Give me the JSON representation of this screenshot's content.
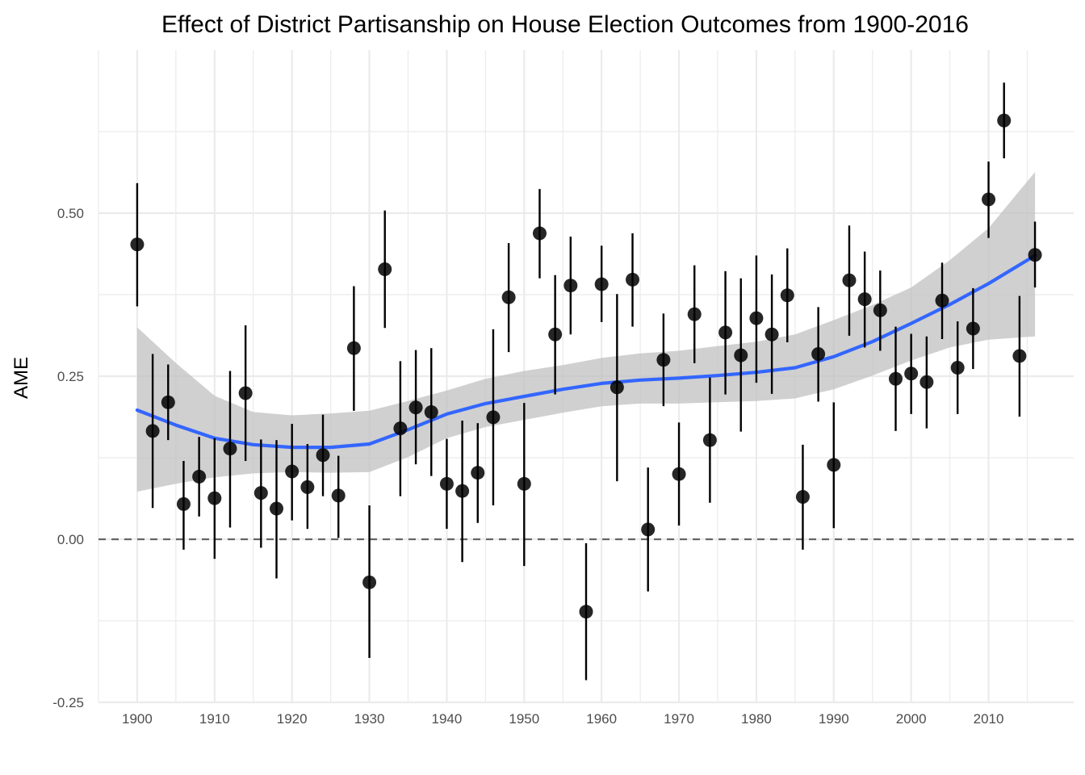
{
  "chart_data": {
    "type": "scatter",
    "title": "Effect of District Partisanship on House Election Outcomes from 1900-2016",
    "xlabel": "",
    "ylabel": "AME",
    "xlim": [
      1895,
      2021
    ],
    "ylim": [
      -0.25,
      0.75
    ],
    "x_ticks": [
      1900,
      1910,
      1920,
      1930,
      1940,
      1950,
      1960,
      1970,
      1980,
      1990,
      2000,
      2010
    ],
    "y_ticks": [
      -0.25,
      0.0,
      0.25,
      0.5
    ],
    "y_tick_labels": [
      "-0.25",
      "0.00",
      "0.25",
      "0.50"
    ],
    "reference_line": 0,
    "grid": true,
    "colors": {
      "points": "#000000",
      "smooth": "#3366ff",
      "ribbon": "#bebebe",
      "reference": "#666666",
      "grid": "#ebebeb"
    },
    "points": [
      {
        "x": 1900,
        "y": 0.452,
        "lo": 0.357,
        "hi": 0.546
      },
      {
        "x": 1902,
        "y": 0.166,
        "lo": 0.048,
        "hi": 0.284
      },
      {
        "x": 1904,
        "y": 0.21,
        "lo": 0.152,
        "hi": 0.268
      },
      {
        "x": 1906,
        "y": 0.054,
        "lo": -0.016,
        "hi": 0.12
      },
      {
        "x": 1908,
        "y": 0.096,
        "lo": 0.035,
        "hi": 0.157
      },
      {
        "x": 1910,
        "y": 0.063,
        "lo": -0.03,
        "hi": 0.155
      },
      {
        "x": 1912,
        "y": 0.139,
        "lo": 0.018,
        "hi": 0.258
      },
      {
        "x": 1914,
        "y": 0.224,
        "lo": 0.12,
        "hi": 0.328
      },
      {
        "x": 1916,
        "y": 0.071,
        "lo": -0.013,
        "hi": 0.153
      },
      {
        "x": 1918,
        "y": 0.047,
        "lo": -0.06,
        "hi": 0.152
      },
      {
        "x": 1920,
        "y": 0.104,
        "lo": 0.029,
        "hi": 0.177
      },
      {
        "x": 1922,
        "y": 0.08,
        "lo": 0.016,
        "hi": 0.146
      },
      {
        "x": 1924,
        "y": 0.129,
        "lo": 0.066,
        "hi": 0.191
      },
      {
        "x": 1926,
        "y": 0.067,
        "lo": 0.002,
        "hi": 0.128
      },
      {
        "x": 1928,
        "y": 0.293,
        "lo": 0.197,
        "hi": 0.388
      },
      {
        "x": 1930,
        "y": -0.066,
        "lo": -0.182,
        "hi": 0.052
      },
      {
        "x": 1932,
        "y": 0.414,
        "lo": 0.324,
        "hi": 0.504
      },
      {
        "x": 1934,
        "y": 0.17,
        "lo": 0.066,
        "hi": 0.273
      },
      {
        "x": 1936,
        "y": 0.202,
        "lo": 0.115,
        "hi": 0.29
      },
      {
        "x": 1938,
        "y": 0.195,
        "lo": 0.097,
        "hi": 0.293
      },
      {
        "x": 1940,
        "y": 0.085,
        "lo": 0.016,
        "hi": 0.154
      },
      {
        "x": 1942,
        "y": 0.074,
        "lo": -0.035,
        "hi": 0.182
      },
      {
        "x": 1944,
        "y": 0.102,
        "lo": 0.025,
        "hi": 0.178
      },
      {
        "x": 1946,
        "y": 0.187,
        "lo": 0.052,
        "hi": 0.322
      },
      {
        "x": 1948,
        "y": 0.371,
        "lo": 0.287,
        "hi": 0.454
      },
      {
        "x": 1950,
        "y": 0.085,
        "lo": -0.041,
        "hi": 0.209
      },
      {
        "x": 1952,
        "y": 0.469,
        "lo": 0.4,
        "hi": 0.537
      },
      {
        "x": 1954,
        "y": 0.314,
        "lo": 0.222,
        "hi": 0.405
      },
      {
        "x": 1956,
        "y": 0.389,
        "lo": 0.314,
        "hi": 0.464
      },
      {
        "x": 1958,
        "y": -0.111,
        "lo": -0.216,
        "hi": -0.006
      },
      {
        "x": 1960,
        "y": 0.391,
        "lo": 0.333,
        "hi": 0.45
      },
      {
        "x": 1962,
        "y": 0.233,
        "lo": 0.089,
        "hi": 0.376
      },
      {
        "x": 1964,
        "y": 0.398,
        "lo": 0.326,
        "hi": 0.469
      },
      {
        "x": 1966,
        "y": 0.015,
        "lo": -0.08,
        "hi": 0.11
      },
      {
        "x": 1968,
        "y": 0.275,
        "lo": 0.204,
        "hi": 0.346
      },
      {
        "x": 1970,
        "y": 0.1,
        "lo": 0.021,
        "hi": 0.179
      },
      {
        "x": 1972,
        "y": 0.345,
        "lo": 0.27,
        "hi": 0.42
      },
      {
        "x": 1974,
        "y": 0.152,
        "lo": 0.056,
        "hi": 0.248
      },
      {
        "x": 1976,
        "y": 0.317,
        "lo": 0.222,
        "hi": 0.411
      },
      {
        "x": 1978,
        "y": 0.282,
        "lo": 0.165,
        "hi": 0.4
      },
      {
        "x": 1980,
        "y": 0.339,
        "lo": 0.24,
        "hi": 0.435
      },
      {
        "x": 1982,
        "y": 0.314,
        "lo": 0.223,
        "hi": 0.406
      },
      {
        "x": 1984,
        "y": 0.374,
        "lo": 0.302,
        "hi": 0.446
      },
      {
        "x": 1986,
        "y": 0.065,
        "lo": -0.016,
        "hi": 0.145
      },
      {
        "x": 1988,
        "y": 0.284,
        "lo": 0.211,
        "hi": 0.356
      },
      {
        "x": 1990,
        "y": 0.114,
        "lo": 0.017,
        "hi": 0.21
      },
      {
        "x": 1992,
        "y": 0.397,
        "lo": 0.312,
        "hi": 0.481
      },
      {
        "x": 1994,
        "y": 0.368,
        "lo": 0.294,
        "hi": 0.441
      },
      {
        "x": 1996,
        "y": 0.351,
        "lo": 0.289,
        "hi": 0.412
      },
      {
        "x": 1998,
        "y": 0.246,
        "lo": 0.166,
        "hi": 0.326
      },
      {
        "x": 2000,
        "y": 0.254,
        "lo": 0.192,
        "hi": 0.315
      },
      {
        "x": 2002,
        "y": 0.241,
        "lo": 0.17,
        "hi": 0.311
      },
      {
        "x": 2004,
        "y": 0.366,
        "lo": 0.307,
        "hi": 0.424
      },
      {
        "x": 2006,
        "y": 0.263,
        "lo": 0.192,
        "hi": 0.334
      },
      {
        "x": 2008,
        "y": 0.323,
        "lo": 0.261,
        "hi": 0.385
      },
      {
        "x": 2010,
        "y": 0.521,
        "lo": 0.462,
        "hi": 0.579
      },
      {
        "x": 2012,
        "y": 0.642,
        "lo": 0.584,
        "hi": 0.7
      },
      {
        "x": 2014,
        "y": 0.281,
        "lo": 0.188,
        "hi": 0.373
      },
      {
        "x": 2016,
        "y": 0.436,
        "lo": 0.386,
        "hi": 0.487
      }
    ],
    "smooth": {
      "x": [
        1900,
        1905,
        1910,
        1915,
        1920,
        1925,
        1930,
        1935,
        1940,
        1945,
        1950,
        1955,
        1960,
        1965,
        1970,
        1975,
        1980,
        1985,
        1990,
        1995,
        2000,
        2005,
        2010,
        2016
      ],
      "y": [
        0.198,
        0.175,
        0.155,
        0.145,
        0.141,
        0.141,
        0.146,
        0.168,
        0.192,
        0.208,
        0.219,
        0.23,
        0.239,
        0.244,
        0.247,
        0.251,
        0.256,
        0.263,
        0.28,
        0.303,
        0.331,
        0.36,
        0.392,
        0.435
      ],
      "lo": [
        0.073,
        0.085,
        0.095,
        0.101,
        0.103,
        0.102,
        0.103,
        0.126,
        0.155,
        0.172,
        0.183,
        0.194,
        0.204,
        0.208,
        0.208,
        0.21,
        0.212,
        0.216,
        0.23,
        0.251,
        0.274,
        0.294,
        0.306,
        0.311
      ],
      "hi": [
        0.325,
        0.27,
        0.22,
        0.195,
        0.19,
        0.193,
        0.197,
        0.212,
        0.228,
        0.246,
        0.258,
        0.267,
        0.278,
        0.285,
        0.289,
        0.296,
        0.303,
        0.314,
        0.336,
        0.359,
        0.386,
        0.428,
        0.477,
        0.563
      ]
    }
  }
}
